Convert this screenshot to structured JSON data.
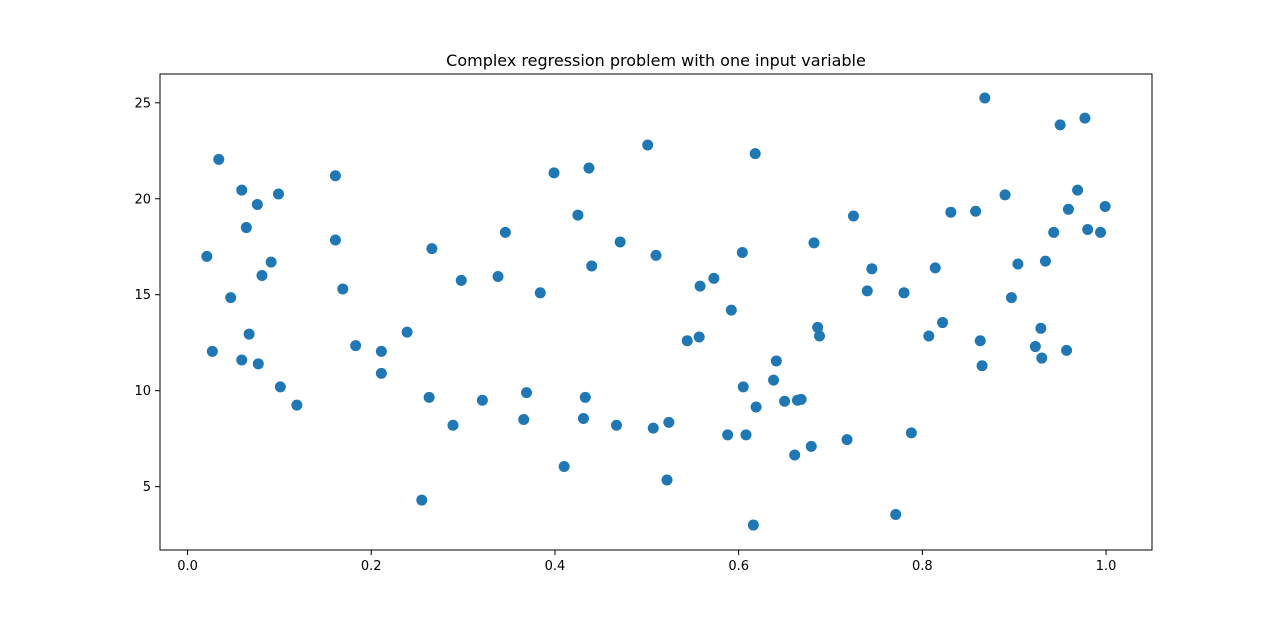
{
  "chart_data": {
    "type": "scatter",
    "title": "Complex regression problem with one input variable",
    "xlabel": "",
    "ylabel": "",
    "xlim": [
      -0.03,
      1.05
    ],
    "ylim": [
      1.7,
      26.5
    ],
    "xticks": [
      0.0,
      0.2,
      0.4,
      0.6,
      0.8,
      1.0
    ],
    "xtick_labels": [
      "0.0",
      "0.2",
      "0.4",
      "0.6",
      "0.8",
      "1.0"
    ],
    "yticks": [
      5,
      10,
      15,
      20,
      25
    ],
    "ytick_labels": [
      "5",
      "10",
      "15",
      "20",
      "25"
    ],
    "grid": false,
    "marker_color": "#1f77b4",
    "series": [
      {
        "points": [
          [
            0.021,
            17.0
          ],
          [
            0.027,
            12.05
          ],
          [
            0.034,
            22.05
          ],
          [
            0.047,
            14.85
          ],
          [
            0.059,
            20.45
          ],
          [
            0.059,
            11.6
          ],
          [
            0.064,
            18.5
          ],
          [
            0.067,
            12.95
          ],
          [
            0.076,
            19.7
          ],
          [
            0.077,
            11.4
          ],
          [
            0.081,
            16.0
          ],
          [
            0.091,
            16.7
          ],
          [
            0.099,
            20.25
          ],
          [
            0.101,
            10.2
          ],
          [
            0.119,
            9.25
          ],
          [
            0.161,
            21.2
          ],
          [
            0.161,
            17.85
          ],
          [
            0.169,
            15.3
          ],
          [
            0.183,
            12.35
          ],
          [
            0.211,
            12.05
          ],
          [
            0.211,
            10.9
          ],
          [
            0.239,
            13.05
          ],
          [
            0.255,
            4.3
          ],
          [
            0.263,
            9.65
          ],
          [
            0.266,
            17.4
          ],
          [
            0.289,
            8.2
          ],
          [
            0.298,
            15.75
          ],
          [
            0.321,
            9.5
          ],
          [
            0.338,
            15.95
          ],
          [
            0.346,
            18.25
          ],
          [
            0.366,
            8.5
          ],
          [
            0.369,
            9.9
          ],
          [
            0.384,
            15.1
          ],
          [
            0.399,
            21.35
          ],
          [
            0.41,
            6.05
          ],
          [
            0.425,
            19.15
          ],
          [
            0.431,
            8.55
          ],
          [
            0.433,
            9.65
          ],
          [
            0.437,
            21.6
          ],
          [
            0.44,
            16.5
          ],
          [
            0.467,
            8.2
          ],
          [
            0.471,
            17.75
          ],
          [
            0.501,
            22.8
          ],
          [
            0.507,
            8.05
          ],
          [
            0.51,
            17.05
          ],
          [
            0.522,
            5.35
          ],
          [
            0.524,
            8.35
          ],
          [
            0.544,
            12.6
          ],
          [
            0.557,
            12.8
          ],
          [
            0.558,
            15.45
          ],
          [
            0.573,
            15.85
          ],
          [
            0.588,
            7.7
          ],
          [
            0.592,
            14.2
          ],
          [
            0.604,
            17.2
          ],
          [
            0.605,
            10.2
          ],
          [
            0.608,
            7.7
          ],
          [
            0.616,
            3.0
          ],
          [
            0.618,
            22.35
          ],
          [
            0.619,
            9.15
          ],
          [
            0.638,
            10.55
          ],
          [
            0.641,
            11.55
          ],
          [
            0.65,
            9.45
          ],
          [
            0.661,
            6.65
          ],
          [
            0.664,
            9.5
          ],
          [
            0.668,
            9.55
          ],
          [
            0.679,
            7.1
          ],
          [
            0.682,
            17.7
          ],
          [
            0.686,
            13.3
          ],
          [
            0.688,
            12.85
          ],
          [
            0.718,
            7.45
          ],
          [
            0.725,
            19.1
          ],
          [
            0.74,
            15.2
          ],
          [
            0.745,
            16.35
          ],
          [
            0.771,
            3.55
          ],
          [
            0.78,
            15.1
          ],
          [
            0.788,
            7.8
          ],
          [
            0.807,
            12.85
          ],
          [
            0.814,
            16.4
          ],
          [
            0.822,
            13.55
          ],
          [
            0.831,
            19.3
          ],
          [
            0.858,
            19.35
          ],
          [
            0.863,
            12.6
          ],
          [
            0.865,
            11.3
          ],
          [
            0.868,
            25.25
          ],
          [
            0.89,
            20.2
          ],
          [
            0.897,
            14.85
          ],
          [
            0.904,
            16.6
          ],
          [
            0.923,
            12.3
          ],
          [
            0.929,
            13.25
          ],
          [
            0.93,
            11.7
          ],
          [
            0.934,
            16.75
          ],
          [
            0.943,
            18.25
          ],
          [
            0.95,
            23.85
          ],
          [
            0.957,
            12.1
          ],
          [
            0.959,
            19.45
          ],
          [
            0.969,
            20.45
          ],
          [
            0.977,
            24.2
          ],
          [
            0.98,
            18.4
          ],
          [
            0.994,
            18.25
          ],
          [
            0.999,
            19.6
          ]
        ]
      }
    ]
  }
}
